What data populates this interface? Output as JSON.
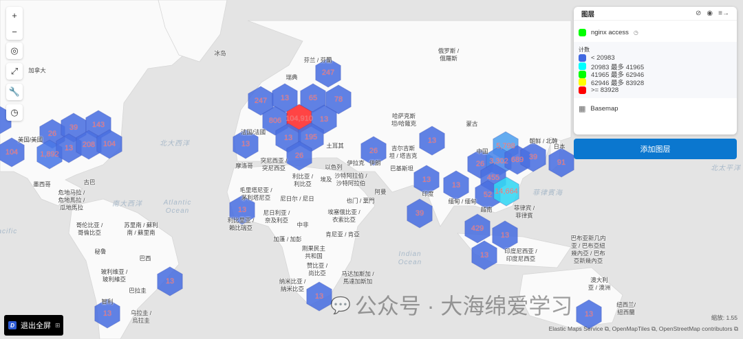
{
  "controls": {
    "zoom_in": "+",
    "zoom_out": "−",
    "locate": "◎",
    "fit": "⤢",
    "tools": "🔧",
    "time": "◷"
  },
  "layers_panel": {
    "title": "图层",
    "layer_name": "nginx access",
    "layer_color": "#00ff00",
    "legend_title": "计数",
    "legend": [
      {
        "label": "< 20983",
        "color": "#4169e1"
      },
      {
        "label": "20983 最多 41965",
        "color": "#00ffff"
      },
      {
        "label": "41965 最多 62946",
        "color": "#00ff00"
      },
      {
        "label": "62946 最多 83928",
        "color": "#ffff00"
      },
      {
        "label": ">= 83928",
        "color": "#ff0000"
      }
    ],
    "basemap": "Basemap",
    "add_layer": "添加图层"
  },
  "hexbins": [
    {
      "label": "",
      "color": "#4a6fe0"
    },
    {
      "label": "104",
      "color": "#4a6fe0"
    },
    {
      "label": "26",
      "color": "#4a6fe0"
    },
    {
      "label": "39",
      "color": "#4a6fe0"
    },
    {
      "label": "143",
      "color": "#4a6fe0"
    },
    {
      "label": "1,892",
      "color": "#4a78e6"
    },
    {
      "label": "13",
      "color": "#4a6fe0"
    },
    {
      "label": "208",
      "color": "#4a6fe0"
    },
    {
      "label": "104",
      "color": "#4a6fe0"
    },
    {
      "label": "247",
      "color": "#4a6fe0"
    },
    {
      "label": "247",
      "color": "#4a6fe0"
    },
    {
      "label": "13",
      "color": "#4a6fe0"
    },
    {
      "label": "65",
      "color": "#4a6fe0"
    },
    {
      "label": "78",
      "color": "#4a6fe0"
    },
    {
      "label": "806",
      "color": "#4a6fe0"
    },
    {
      "label": "104,910",
      "color": "#ff2a2a"
    },
    {
      "label": "13",
      "color": "#4a6fe0"
    },
    {
      "label": "13",
      "color": "#4a6fe0"
    },
    {
      "label": "195",
      "color": "#4a6fe0"
    },
    {
      "label": "26",
      "color": "#4a6fe0"
    },
    {
      "label": "13",
      "color": "#4a6fe0"
    },
    {
      "label": "26",
      "color": "#4a6fe0"
    },
    {
      "label": "13",
      "color": "#4a6fe0"
    },
    {
      "label": "13",
      "color": "#4a6fe0"
    },
    {
      "label": "13",
      "color": "#4a6fe0"
    },
    {
      "label": "39",
      "color": "#4a6fe0"
    },
    {
      "label": "5,798",
      "color": "#4fa0ee"
    },
    {
      "label": "26",
      "color": "#4a6fe0"
    },
    {
      "label": "3,302",
      "color": "#4a86e8"
    },
    {
      "label": "689",
      "color": "#4a6fe0"
    },
    {
      "label": "39",
      "color": "#4a6fe0"
    },
    {
      "label": "91",
      "color": "#4a6fe0"
    },
    {
      "label": "455",
      "color": "#4a6fe0"
    },
    {
      "label": "52",
      "color": "#4a6fe0"
    },
    {
      "label": "14,664",
      "color": "#33d6f2"
    },
    {
      "label": "429",
      "color": "#4a6fe0"
    },
    {
      "label": "13",
      "color": "#4a6fe0"
    },
    {
      "label": "13",
      "color": "#4a6fe0"
    },
    {
      "label": "13",
      "color": "#4a6fe0"
    },
    {
      "label": "13",
      "color": "#4a6fe0"
    },
    {
      "label": "13",
      "color": "#4a6fe0"
    },
    {
      "label": "13",
      "color": "#4a6fe0"
    },
    {
      "label": "13",
      "color": "#4a6fe0"
    }
  ],
  "place_labels": [
    "冰岛",
    "芬兰 / 芬蘭",
    "瑞典",
    "法国/法國",
    "美国/美國",
    "加拿大",
    "墨西哥",
    "古巴",
    "危地马拉 /\n危地馬拉 /\n瓜地馬拉",
    "哥伦比亚 /\n哥倫比亞",
    "苏里南 / 蘇利\n南 / 蘇里南",
    "秘鲁",
    "巴西",
    "玻利维亚 /\n玻利維亞",
    "巴拉圭",
    "智利",
    "乌拉圭 /\n烏拉圭",
    "摩洛哥",
    "突尼西亚 /\n突尼西亞",
    "利比亚 /\n利比亞",
    "埃及",
    "土耳其",
    "以色列",
    "伊拉克",
    "伊朗",
    "沙特阿拉伯 /\n沙特阿拉伯",
    "阿曼",
    "也门 / 葉門",
    "毛里塔尼亚 /\n茅利塔尼亞",
    "尼日尔 / 尼日",
    "尼日利亚 /\n奈及利亞",
    "利比里亚 /\n賴比瑞亞",
    "中非",
    "埃塞俄比亚 /\n衣索比亞",
    "肯尼亚 / 肯亞",
    "加蓬 / 加彭",
    "刚果民主\n共和国",
    "赞比亚 /\n尚比亞",
    "纳米比亚 /\n納米比亞",
    "马达加斯加 /\n馬達加斯加",
    "俄罗斯 /\n俄羅斯",
    "哈萨克斯\n坦/哈薩克",
    "蒙古",
    "吉尔吉斯\n坦 / 塔吉克",
    "巴基斯坦",
    "中国",
    "印度",
    "缅甸 / 缅甸",
    "越南",
    "朝鲜 / 北韓",
    "日本",
    "菲律宾 /\n菲律賓",
    "印度尼西亚 /\n印度尼西亞",
    "巴布亚新几内\n亚 / 巴布亞紐\n幾內亞 / 巴布\n亞新幾內亞",
    "澳大利\n亚 / 澳洲",
    "纽西兰/\n紐西蘭"
  ],
  "ocean_labels": [
    "Atlantic\nOcean",
    "Indian\nOcean",
    "北大西洋",
    "南大西洋",
    "菲律賓海",
    "北太平洋",
    "Pacific"
  ],
  "zoom_readout": "缩放: 1.55",
  "attribution": "Elastic Maps Service ⧉, OpenMapTiles ⧉, OpenStreetMap contributors ⧉",
  "exit_fullscreen": "退出全屏",
  "watermark": "公众号 · 大海绵爱学习"
}
